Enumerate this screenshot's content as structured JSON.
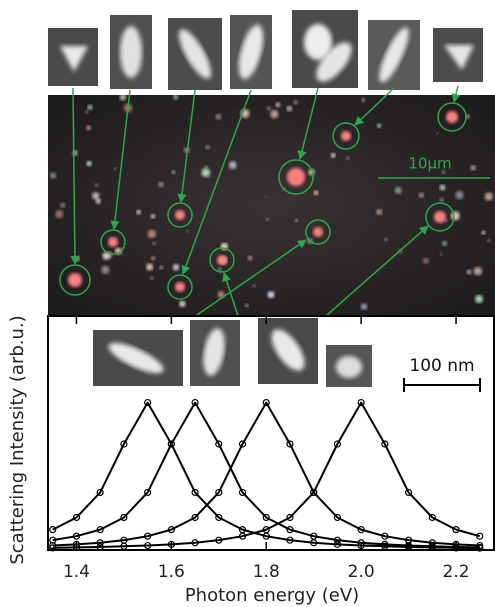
{
  "chart_data": {
    "type": "line",
    "x_label": "Photon energy (eV)",
    "y_label": "Scattering Intensity (arb.u.)",
    "annotations": [
      "100 nm",
      "10μm"
    ],
    "xlim": [
      1.34,
      2.28
    ],
    "ylim": [
      0,
      1
    ],
    "xticks": [
      1.4,
      1.6,
      1.8,
      {
        "value": 2,
        "label": "2.0"
      },
      2.2
    ],
    "x": [
      1.35,
      1.4,
      1.45,
      1.5,
      1.55,
      1.6,
      1.65,
      1.7,
      1.75,
      1.8,
      1.85,
      1.9,
      1.95,
      2.0,
      2.05,
      2.1,
      2.15,
      2.2,
      2.25
    ],
    "markers": true,
    "series": [
      {
        "color": "#000000",
        "values": [
          0.087,
          0.139,
          0.246,
          0.453,
          0.63,
          0.453,
          0.246,
          0.139,
          0.087,
          0.059,
          0.042,
          0.031,
          0.024,
          0.019,
          0.016,
          0.013,
          0.011,
          0.009,
          0.008
        ]
      },
      {
        "color": "#000000",
        "values": [
          0.042,
          0.059,
          0.087,
          0.139,
          0.246,
          0.453,
          0.63,
          0.453,
          0.246,
          0.139,
          0.087,
          0.059,
          0.042,
          0.031,
          0.024,
          0.019,
          0.016,
          0.013,
          0.011
        ]
      },
      {
        "color": "#000000",
        "values": [
          0.019,
          0.024,
          0.031,
          0.042,
          0.059,
          0.087,
          0.139,
          0.246,
          0.453,
          0.63,
          0.453,
          0.246,
          0.139,
          0.087,
          0.059,
          0.042,
          0.031,
          0.024,
          0.019
        ]
      },
      {
        "color": "#000000",
        "values": [
          0.009,
          0.011,
          0.013,
          0.016,
          0.019,
          0.024,
          0.031,
          0.042,
          0.059,
          0.087,
          0.139,
          0.246,
          0.453,
          0.63,
          0.453,
          0.246,
          0.139,
          0.087,
          0.059
        ]
      }
    ]
  }
}
